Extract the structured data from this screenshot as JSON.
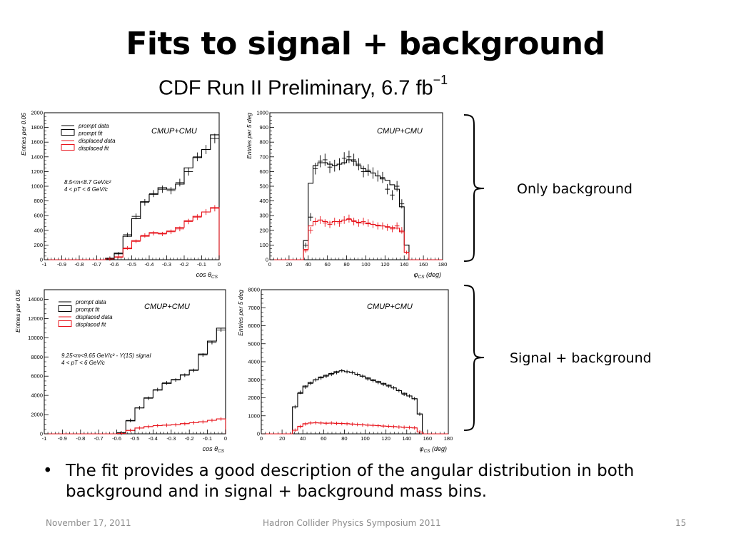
{
  "slide": {
    "title": "Fits to signal + background",
    "banner": "CDF Run II  Preliminary, 6.7 fb",
    "banner_exp": "−1",
    "bracket_top_label": "Only background",
    "bracket_bottom_label": "Signal + background",
    "bullet_symbol": "•",
    "bullet_text": "The fit provides a good description of the angular distribution in both background and in signal + background mass bins.",
    "footer_date": "November 17, 2011",
    "footer_event": "Hadron Collider Physics Symposium  2011",
    "footer_page": "15"
  },
  "colors": {
    "data_prompt": "#000000",
    "data_displaced": "#e8141c"
  },
  "chart_data": [
    {
      "type": "histogram",
      "panel": "background-cos",
      "tag": "CMUP+CMU",
      "ylabel": "Entries per 0.05",
      "xlabel": "cos θ",
      "xlabel_sub": "CS",
      "xlim": [
        -1,
        0
      ],
      "ylim": [
        0,
        2000
      ],
      "xticks": [
        -1,
        -0.9,
        -0.8,
        -0.7,
        -0.6,
        -0.5,
        -0.4,
        -0.3,
        -0.2,
        -0.1,
        0
      ],
      "xticklabels": [
        "-1",
        "-0.9",
        "-0.8",
        "-0.7",
        "-0.6",
        "-0.5",
        "-0.4",
        "-0.3",
        "-0.2",
        "-0.1",
        "0"
      ],
      "yticks": [
        0,
        200,
        400,
        600,
        800,
        1000,
        1200,
        1400,
        1600,
        1800,
        2000
      ],
      "yticklabels": [
        "0",
        "200",
        "400",
        "600",
        "800",
        "1000",
        "1200",
        "1400",
        "1600",
        "1800",
        "2000"
      ],
      "legend": [
        "prompt data",
        "prompt fit",
        "displaced data",
        "displaced fit"
      ],
      "annotation": [
        "8.5<m<8.7 GeV/c²",
        "4 < pT < 6 GeV/c"
      ],
      "bin_edges": [
        -1,
        -0.95,
        -0.9,
        -0.85,
        -0.8,
        -0.75,
        -0.7,
        -0.65,
        -0.6,
        -0.55,
        -0.5,
        -0.45,
        -0.4,
        -0.35,
        -0.3,
        -0.25,
        -0.2,
        -0.15,
        -0.1,
        -0.05,
        0
      ],
      "series": [
        {
          "name": "prompt data",
          "values": [
            0,
            0,
            0,
            0,
            0,
            0,
            0,
            20,
            80,
            340,
            590,
            780,
            900,
            960,
            940,
            1050,
            1200,
            1400,
            1500,
            1650
          ]
        },
        {
          "name": "prompt fit",
          "values": [
            0,
            0,
            0,
            0,
            0,
            0,
            0,
            20,
            90,
            320,
            560,
            790,
            890,
            980,
            960,
            1030,
            1250,
            1390,
            1500,
            1700
          ]
        },
        {
          "name": "displaced data",
          "values": [
            0,
            0,
            0,
            0,
            0,
            0,
            0,
            10,
            40,
            160,
            250,
            330,
            360,
            350,
            380,
            420,
            520,
            580,
            650,
            700
          ]
        },
        {
          "name": "displaced fit",
          "values": [
            0,
            0,
            0,
            0,
            0,
            0,
            0,
            10,
            35,
            150,
            260,
            320,
            370,
            360,
            390,
            440,
            530,
            590,
            650,
            710
          ]
        }
      ]
    },
    {
      "type": "histogram",
      "panel": "background-phi",
      "tag": "CMUP+CMU",
      "ylabel": "Entries per 5 deg",
      "xlabel": "φ",
      "xlabel_sub": "CS",
      "xlabel_unit": " (deg)",
      "xlim": [
        0,
        180
      ],
      "ylim": [
        0,
        1000
      ],
      "xticks": [
        0,
        20,
        40,
        60,
        80,
        100,
        120,
        140,
        160,
        180
      ],
      "xticklabels": [
        "0",
        "20",
        "40",
        "60",
        "80",
        "100",
        "120",
        "140",
        "160",
        "180"
      ],
      "yticks": [
        0,
        100,
        200,
        300,
        400,
        500,
        600,
        700,
        800,
        900,
        1000
      ],
      "yticklabels": [
        "0",
        "100",
        "200",
        "300",
        "400",
        "500",
        "600",
        "700",
        "800",
        "900",
        "1000"
      ],
      "bin_edges": [
        0,
        5,
        10,
        15,
        20,
        25,
        30,
        35,
        40,
        45,
        50,
        55,
        60,
        65,
        70,
        75,
        80,
        85,
        90,
        95,
        100,
        105,
        110,
        115,
        120,
        125,
        130,
        135,
        140,
        145,
        150,
        155,
        160,
        165,
        170,
        175,
        180
      ],
      "series": [
        {
          "name": "prompt data",
          "values": [
            0,
            0,
            0,
            0,
            0,
            0,
            0,
            100,
            290,
            620,
            670,
            680,
            630,
            640,
            650,
            690,
            700,
            680,
            650,
            600,
            610,
            590,
            570,
            560,
            480,
            440,
            500,
            380,
            0,
            0,
            0,
            0,
            0,
            0,
            0,
            0
          ]
        },
        {
          "name": "prompt fit",
          "values": [
            0,
            0,
            0,
            0,
            0,
            0,
            0,
            130,
            520,
            640,
            660,
            660,
            650,
            640,
            650,
            660,
            680,
            670,
            640,
            620,
            600,
            590,
            570,
            550,
            540,
            510,
            480,
            360,
            100,
            0,
            0,
            0,
            0,
            0,
            0,
            0
          ]
        },
        {
          "name": "displaced data",
          "values": [
            0,
            0,
            0,
            0,
            0,
            0,
            0,
            60,
            200,
            260,
            270,
            250,
            240,
            260,
            250,
            270,
            280,
            260,
            250,
            260,
            250,
            240,
            230,
            230,
            220,
            210,
            230,
            200,
            50,
            0,
            0,
            0,
            0,
            0,
            0,
            0
          ]
        },
        {
          "name": "displaced fit",
          "values": [
            0,
            0,
            0,
            0,
            0,
            0,
            0,
            70,
            230,
            260,
            270,
            260,
            250,
            260,
            260,
            270,
            275,
            265,
            255,
            250,
            245,
            240,
            235,
            230,
            225,
            220,
            215,
            190,
            50,
            0,
            0,
            0,
            0,
            0,
            0,
            0
          ]
        }
      ]
    },
    {
      "type": "histogram",
      "panel": "signal-cos",
      "tag": "CMUP+CMU",
      "ylabel": "Entries per 0.05",
      "xlabel": "cos θ",
      "xlabel_sub": "CS",
      "xlim": [
        -1,
        0
      ],
      "ylim": [
        0,
        15000
      ],
      "xticks": [
        -1,
        -0.9,
        -0.8,
        -0.7,
        -0.6,
        -0.5,
        -0.4,
        -0.3,
        -0.2,
        -0.1,
        0
      ],
      "xticklabels": [
        "-1",
        "-0.9",
        "-0.8",
        "-0.7",
        "-0.6",
        "-0.5",
        "-0.4",
        "-0.3",
        "-0.2",
        "-0.1",
        "0"
      ],
      "yticks": [
        0,
        2000,
        4000,
        6000,
        8000,
        10000,
        12000,
        14000
      ],
      "yticklabels": [
        "0",
        "2000",
        "4000",
        "6000",
        "8000",
        "10000",
        "12000",
        "14000"
      ],
      "legend": [
        "prompt data",
        "prompt fit",
        "displaced data",
        "displaced fit"
      ],
      "annotation": [
        "9.25<m<9.65 GeV/c² - ϒ(1S) signal",
        "4 < pT < 6 GeV/c"
      ],
      "bin_edges": [
        -1,
        -0.95,
        -0.9,
        -0.85,
        -0.8,
        -0.75,
        -0.7,
        -0.65,
        -0.6,
        -0.55,
        -0.5,
        -0.45,
        -0.4,
        -0.35,
        -0.3,
        -0.25,
        -0.2,
        -0.15,
        -0.1,
        -0.05,
        0
      ],
      "series": [
        {
          "name": "prompt data",
          "values": [
            0,
            0,
            0,
            0,
            0,
            0,
            0,
            0,
            100,
            1400,
            2700,
            3700,
            4600,
            5300,
            5600,
            6100,
            6600,
            8200,
            9500,
            10800
          ]
        },
        {
          "name": "prompt fit",
          "values": [
            0,
            0,
            0,
            0,
            0,
            0,
            0,
            0,
            120,
            1350,
            2700,
            3750,
            4550,
            5250,
            5650,
            6150,
            6650,
            8300,
            9650,
            11000
          ]
        },
        {
          "name": "displaced data",
          "values": [
            0,
            0,
            0,
            0,
            0,
            0,
            0,
            0,
            40,
            350,
            600,
            750,
            850,
            900,
            950,
            1050,
            1150,
            1250,
            1400,
            1550
          ]
        },
        {
          "name": "displaced fit",
          "values": [
            0,
            0,
            0,
            0,
            0,
            0,
            0,
            0,
            40,
            360,
            610,
            760,
            860,
            910,
            960,
            1060,
            1160,
            1260,
            1410,
            1560
          ]
        }
      ]
    },
    {
      "type": "histogram",
      "panel": "signal-phi",
      "tag": "CMUP+CMU",
      "ylabel": "Entries per 5 deg",
      "xlabel": "φ",
      "xlabel_sub": "CS",
      "xlabel_unit": " (deg)",
      "xlim": [
        0,
        180
      ],
      "ylim": [
        0,
        8000
      ],
      "xticks": [
        0,
        20,
        40,
        60,
        80,
        100,
        120,
        140,
        160,
        180
      ],
      "xticklabels": [
        "0",
        "20",
        "40",
        "60",
        "80",
        "100",
        "120",
        "140",
        "160",
        "180"
      ],
      "yticks": [
        0,
        1000,
        2000,
        3000,
        4000,
        5000,
        6000,
        7000,
        8000
      ],
      "yticklabels": [
        "0",
        "1000",
        "2000",
        "3000",
        "4000",
        "5000",
        "6000",
        "7000",
        "8000"
      ],
      "bin_edges": [
        0,
        5,
        10,
        15,
        20,
        25,
        30,
        35,
        40,
        45,
        50,
        55,
        60,
        65,
        70,
        75,
        80,
        85,
        90,
        95,
        100,
        105,
        110,
        115,
        120,
        125,
        130,
        135,
        140,
        145,
        150,
        155,
        160,
        165,
        170,
        175,
        180
      ],
      "series": [
        {
          "name": "prompt data",
          "values": [
            0,
            0,
            0,
            0,
            0,
            0,
            1500,
            2300,
            2600,
            2800,
            3000,
            3100,
            3200,
            3300,
            3400,
            3500,
            3450,
            3400,
            3300,
            3200,
            3050,
            2950,
            2850,
            2750,
            2650,
            2550,
            2400,
            2200,
            2100,
            1950,
            1100,
            0,
            0,
            0,
            0,
            0
          ]
        },
        {
          "name": "prompt fit",
          "values": [
            0,
            0,
            0,
            0,
            0,
            0,
            1500,
            2250,
            2650,
            2850,
            3000,
            3150,
            3250,
            3350,
            3450,
            3500,
            3450,
            3400,
            3300,
            3200,
            3100,
            3000,
            2900,
            2800,
            2700,
            2550,
            2400,
            2250,
            2100,
            1950,
            1100,
            0,
            0,
            0,
            0,
            0
          ]
        },
        {
          "name": "displaced data",
          "values": [
            0,
            0,
            0,
            0,
            0,
            0,
            200,
            400,
            550,
            600,
            620,
            600,
            580,
            600,
            580,
            570,
            560,
            540,
            520,
            500,
            480,
            470,
            450,
            430,
            420,
            400,
            380,
            360,
            350,
            330,
            100,
            0,
            0,
            0,
            0,
            0
          ]
        },
        {
          "name": "displaced fit",
          "values": [
            0,
            0,
            0,
            0,
            0,
            0,
            200,
            420,
            560,
            600,
            610,
            600,
            590,
            590,
            580,
            570,
            560,
            545,
            525,
            505,
            485,
            470,
            455,
            435,
            420,
            405,
            385,
            365,
            350,
            330,
            100,
            0,
            0,
            0,
            0,
            0
          ]
        }
      ]
    }
  ]
}
